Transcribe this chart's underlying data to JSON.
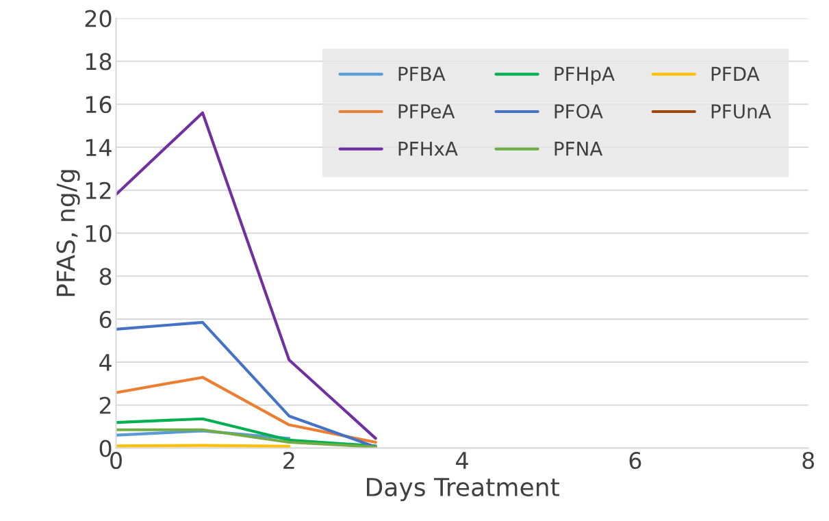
{
  "chart_data": {
    "type": "line",
    "xlabel": "Days Treatment",
    "ylabel": "PFAS, ng/g",
    "x": [
      0,
      1,
      2,
      3
    ],
    "xlim": [
      0,
      8
    ],
    "xticks": [
      0,
      2,
      4,
      6,
      8
    ],
    "ylim": [
      0,
      20
    ],
    "yticks": [
      0,
      2,
      4,
      6,
      8,
      10,
      12,
      14,
      16,
      18,
      20
    ],
    "grid": "y",
    "legend": "top right",
    "series": [
      {
        "name": "PFBA",
        "color": "#5b9bd5",
        "values": [
          0.6,
          0.8,
          0.45,
          null
        ]
      },
      {
        "name": "PFPeA",
        "color": "#ed7d31",
        "values": [
          2.58,
          3.29,
          1.08,
          0.27
        ]
      },
      {
        "name": "PFHxA",
        "color": "#7030a0",
        "values": [
          11.8,
          15.6,
          4.1,
          0.45
        ]
      },
      {
        "name": "PFHpA",
        "color": "#00b050",
        "values": [
          1.19,
          1.36,
          0.37,
          0.1
        ]
      },
      {
        "name": "PFOA",
        "color": "#4472c4",
        "values": [
          5.53,
          5.85,
          1.49,
          0.05
        ]
      },
      {
        "name": "PFNA",
        "color": "#70ad47",
        "values": [
          0.85,
          0.85,
          0.27,
          0.05
        ]
      },
      {
        "name": "PFDA",
        "color": "#ffc000",
        "values": [
          0.1,
          0.12,
          0.08,
          null
        ]
      },
      {
        "name": "PFUnA",
        "color": "#9e480e",
        "values": [
          null,
          null,
          null,
          null
        ]
      }
    ]
  }
}
